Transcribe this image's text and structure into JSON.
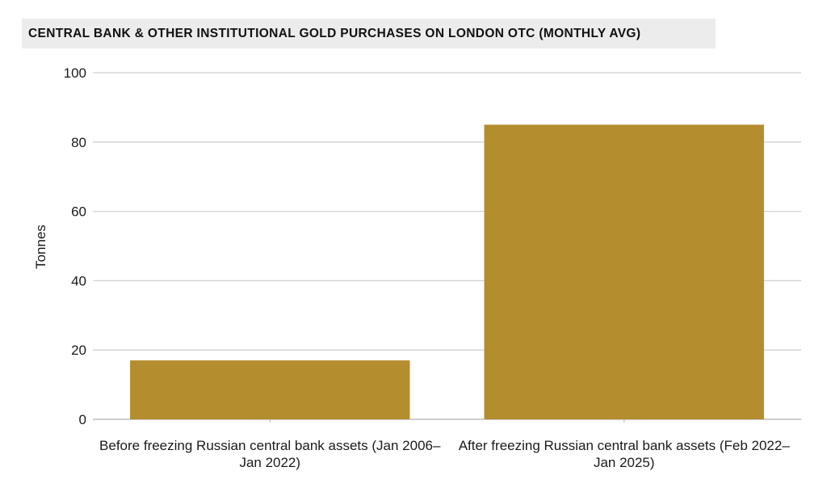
{
  "chart_data": {
    "type": "bar",
    "title": "CENTRAL BANK & OTHER INSTITUTIONAL GOLD PURCHASES ON LONDON OTC (MONTHLY AVG)",
    "xlabel": "",
    "ylabel": "Tonnes",
    "categories": [
      "Before freezing Russian central bank assets (Jan 2006–Jan 2022)",
      "After freezing Russian central bank assets (Feb 2022–Jan 2025)"
    ],
    "values": [
      17,
      85
    ],
    "ylim": [
      0,
      100
    ],
    "yticks": [
      0,
      20,
      40,
      60,
      80,
      100
    ],
    "grid": true,
    "legend": "none",
    "colors": {
      "bar": "#b38d2e",
      "grid": "#d0d0d0",
      "title_background": "#ececec"
    }
  }
}
